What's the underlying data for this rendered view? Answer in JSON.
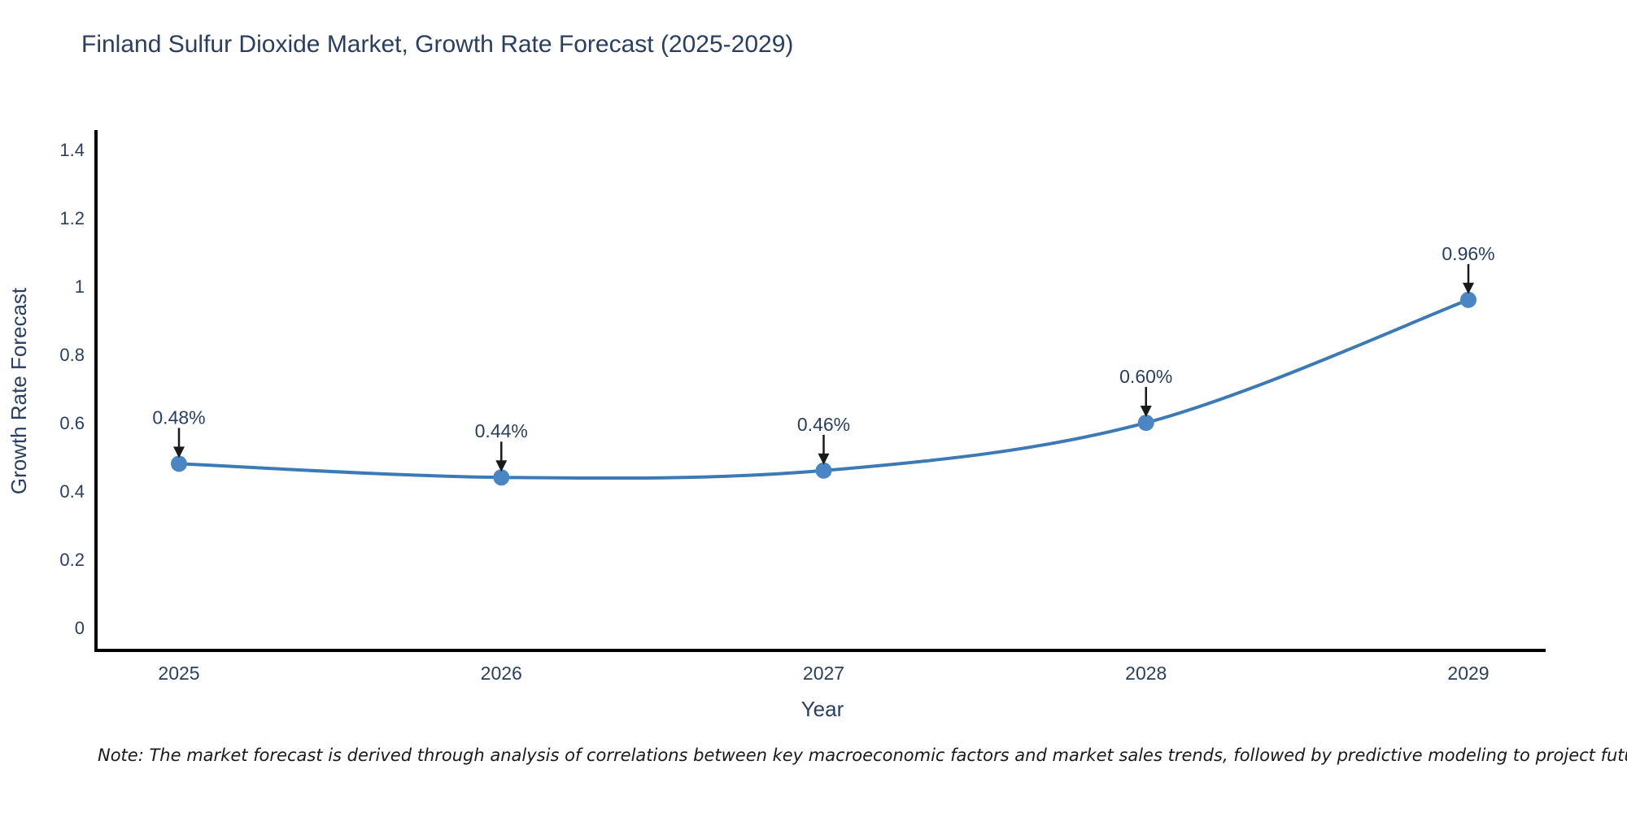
{
  "page": {
    "background": "#ffffff"
  },
  "chart_data": {
    "type": "line",
    "line_shape": "spline",
    "title": "Finland Sulfur Dioxide Market, Growth Rate Forecast (2025-2029)",
    "xlabel": "Year",
    "ylabel": "Growth Rate Forecast",
    "categories": [
      "2025",
      "2026",
      "2027",
      "2028",
      "2029"
    ],
    "series": [
      {
        "name": "Growth Rate Forecast",
        "values": [
          0.48,
          0.44,
          0.46,
          0.6,
          0.96
        ]
      }
    ],
    "point_labels": [
      "0.48%",
      "0.44%",
      "0.46%",
      "0.60%",
      "0.96%"
    ],
    "yticks": [
      0,
      0.2,
      0.4,
      0.6,
      0.8,
      1,
      1.2,
      1.4
    ],
    "ytick_labels": [
      "0",
      "0.2",
      "0.4",
      "0.6",
      "0.8",
      "1",
      "1.2",
      "1.4"
    ],
    "ylim": [
      -0.07,
      1.46
    ],
    "grid": false,
    "legend_position": "none",
    "line_color": "#3c7ab6",
    "marker_color": "#4a86c4",
    "axis_color": "#000000",
    "text_color": "#2a3f5f",
    "annotation_arrow_color": "#1a1a1a"
  },
  "note": {
    "text": "Note: The market forecast is derived through analysis of correlations between key macroeconomic factors and market sales trends, followed by predictive modeling to project future sales"
  }
}
